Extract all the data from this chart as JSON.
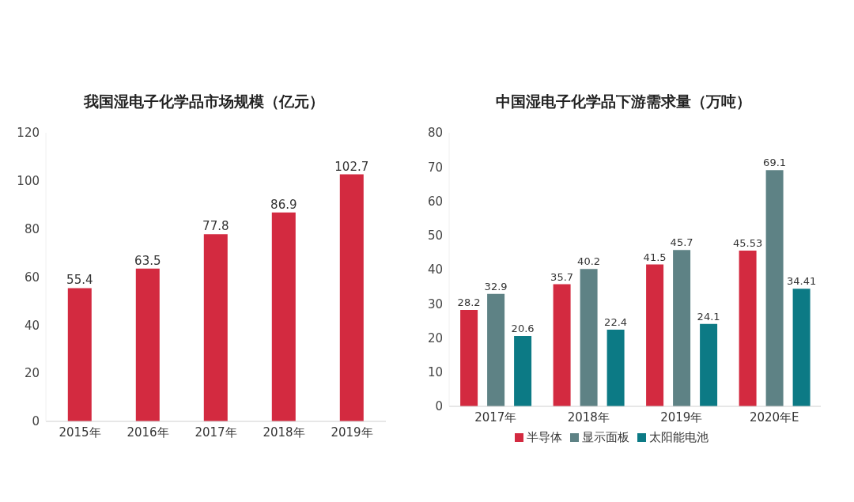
{
  "chart_data": [
    {
      "type": "bar",
      "title": "我国湿电子化学品市场规模（亿元）",
      "categories": [
        "2015年",
        "2016年",
        "2017年",
        "2018年",
        "2019年"
      ],
      "values": [
        55.4,
        63.5,
        77.8,
        86.9,
        102.7
      ],
      "color": "#d32a40",
      "ylim": [
        0,
        120
      ],
      "yticks": [
        0,
        20,
        40,
        60,
        80,
        100,
        120
      ],
      "data_labels": true,
      "grid": false
    },
    {
      "type": "bar",
      "title": "中国湿电子化学品下游需求量（万吨）",
      "categories": [
        "2017年",
        "2018年",
        "2019年",
        "2020年E"
      ],
      "series": [
        {
          "name": "半导体",
          "color": "#d32a40",
          "values": [
            28.2,
            35.7,
            41.5,
            45.53
          ]
        },
        {
          "name": "显示面板",
          "color": "#5e8285",
          "values": [
            32.9,
            40.2,
            45.7,
            69.1
          ]
        },
        {
          "name": "太阳能电池",
          "color": "#0c7a85",
          "values": [
            20.6,
            22.4,
            24.1,
            34.41
          ]
        }
      ],
      "ylim": [
        0,
        80
      ],
      "yticks": [
        0,
        10,
        20,
        30,
        40,
        50,
        60,
        70,
        80
      ],
      "data_labels": true,
      "legend": "bottom",
      "grid": false
    }
  ]
}
